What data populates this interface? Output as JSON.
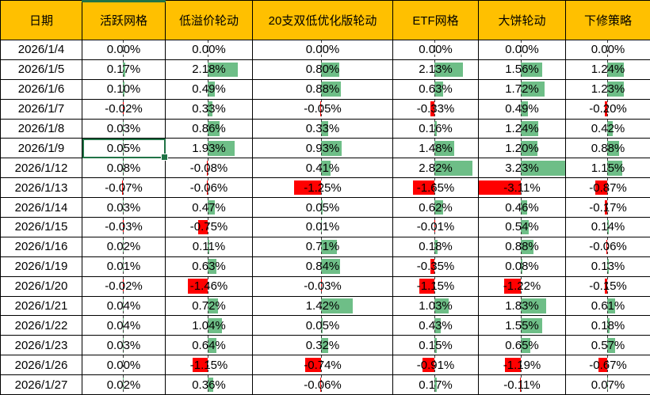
{
  "table": {
    "columns": [
      "日期",
      "活跃网格",
      "低溢价轮动",
      "20支双低优化版轮动",
      "ETF网格",
      "大饼轮动",
      "下修策略"
    ],
    "rows": [
      {
        "date": "2026/1/4",
        "values": [
          "0.00%",
          "0.00%",
          "0.00%",
          "0.00%",
          "0.00%",
          "0.00%"
        ]
      },
      {
        "date": "2026/1/5",
        "values": [
          "0.17%",
          "2.18%",
          "0.80%",
          "2.13%",
          "1.56%",
          "1.24%"
        ]
      },
      {
        "date": "2026/1/6",
        "values": [
          "0.10%",
          "0.49%",
          "0.88%",
          "0.63%",
          "1.72%",
          "1.23%"
        ]
      },
      {
        "date": "2026/1/7",
        "values": [
          "-0.02%",
          "0.33%",
          "-0.05%",
          "-0.33%",
          "0.49%",
          "-0.20%"
        ]
      },
      {
        "date": "2026/1/8",
        "values": [
          "0.03%",
          "0.86%",
          "0.33%",
          "0.16%",
          "1.24%",
          "0.42%"
        ]
      },
      {
        "date": "2026/1/9",
        "values": [
          "0.05%",
          "1.93%",
          "0.93%",
          "1.48%",
          "1.20%",
          "0.88%"
        ]
      },
      {
        "date": "2026/1/12",
        "values": [
          "0.08%",
          "-0.08%",
          "0.41%",
          "2.82%",
          "3.23%",
          "1.15%"
        ]
      },
      {
        "date": "2026/1/13",
        "values": [
          "-0.07%",
          "-0.06%",
          "-1.25%",
          "-1.65%",
          "-3.11%",
          "-0.87%"
        ]
      },
      {
        "date": "2026/1/14",
        "values": [
          "0.03%",
          "0.47%",
          "0.05%",
          "0.62%",
          "0.46%",
          "-0.17%"
        ]
      },
      {
        "date": "2026/1/15",
        "values": [
          "-0.03%",
          "-0.75%",
          "0.01%",
          "-0.01%",
          "0.54%",
          "0.14%"
        ]
      },
      {
        "date": "2026/1/16",
        "values": [
          "0.02%",
          "0.11%",
          "0.71%",
          "0.18%",
          "0.88%",
          "-0.06%"
        ]
      },
      {
        "date": "2026/1/19",
        "values": [
          "0.01%",
          "0.63%",
          "0.84%",
          "-0.35%",
          "0.08%",
          "0.13%"
        ]
      },
      {
        "date": "2026/1/20",
        "values": [
          "-0.02%",
          "-1.46%",
          "-0.03%",
          "-1.15%",
          "-1.22%",
          "-0.15%"
        ]
      },
      {
        "date": "2026/1/21",
        "values": [
          "0.04%",
          "0.72%",
          "1.42%",
          "1.03%",
          "1.83%",
          "0.61%"
        ]
      },
      {
        "date": "2026/1/22",
        "values": [
          "0.04%",
          "1.04%",
          "0.05%",
          "0.43%",
          "1.55%",
          "0.18%"
        ]
      },
      {
        "date": "2026/1/23",
        "values": [
          "0.03%",
          "0.64%",
          "0.32%",
          "0.15%",
          "0.65%",
          "0.57%"
        ]
      },
      {
        "date": "2026/1/26",
        "values": [
          "0.00%",
          "-1.15%",
          "-0.74%",
          "-0.91%",
          "-1.19%",
          "-0.67%"
        ]
      },
      {
        "date": "2026/1/27",
        "values": [
          "0.02%",
          "0.36%",
          "-0.06%",
          "0.17%",
          "-0.11%",
          "0.07%"
        ]
      }
    ]
  },
  "selection": {
    "date": "2026/1/9",
    "column": "活跃网格"
  },
  "colors": {
    "header_bg": "#FFC000",
    "positive_bar": "#6EBE87",
    "negative_bar": "#FF0000",
    "selection_green": "#217346",
    "grid_border": "#000000"
  }
}
